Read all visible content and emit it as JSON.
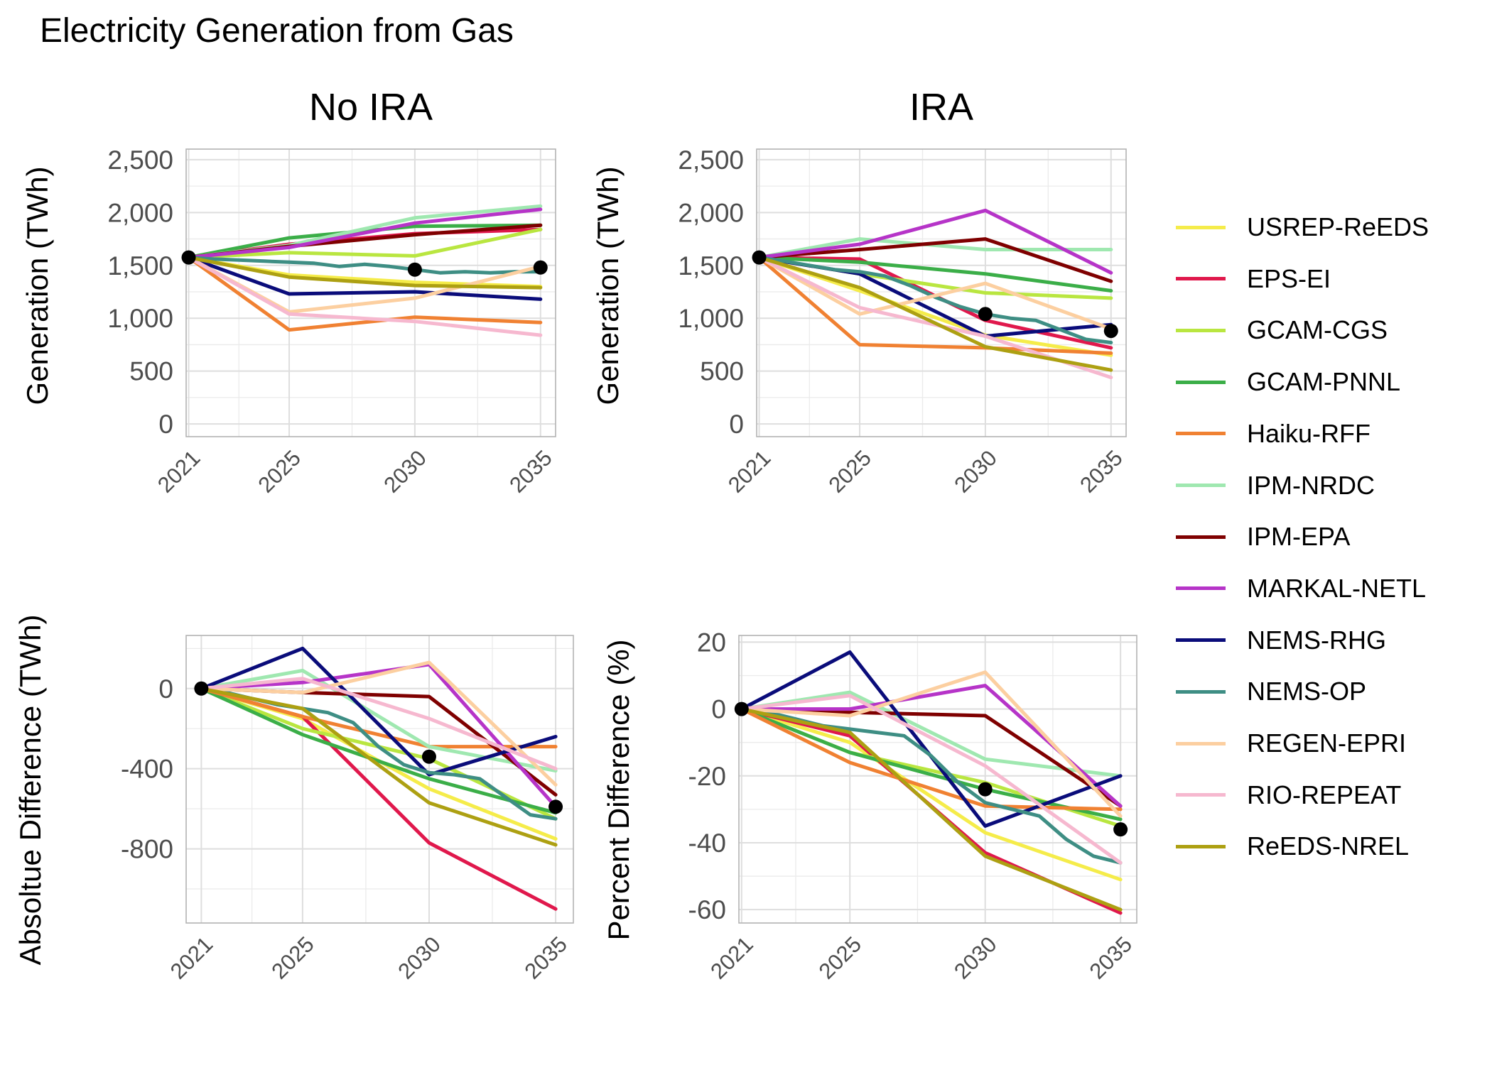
{
  "title": "Electricity Generation from Gas",
  "facets": [
    "No IRA",
    "IRA"
  ],
  "legend": [
    {
      "name": "USREP-ReEDS",
      "color": "#F5EC4A"
    },
    {
      "name": "EPS-EI",
      "color": "#E0184C"
    },
    {
      "name": "GCAM-CGS",
      "color": "#B9E640"
    },
    {
      "name": "GCAM-PNNL",
      "color": "#3BAE48"
    },
    {
      "name": "Haiku-RFF",
      "color": "#F08132"
    },
    {
      "name": "IPM-NRDC",
      "color": "#9FE8B0"
    },
    {
      "name": "IPM-EPA",
      "color": "#7F0000"
    },
    {
      "name": "MARKAL-NETL",
      "color": "#B634C8"
    },
    {
      "name": "NEMS-RHG",
      "color": "#0A0C7A"
    },
    {
      "name": "NEMS-OP",
      "color": "#3E8E84"
    },
    {
      "name": "REGEN-EPRI",
      "color": "#FCCFA0"
    },
    {
      "name": "RIO-REPEAT",
      "color": "#F6B8CF"
    },
    {
      "name": "ReEDS-NREL",
      "color": "#ADA012"
    }
  ],
  "chart_data": [
    {
      "type": "line",
      "id": "no-ira-generation",
      "facet": "No IRA",
      "ylabel": "Generation (TWh)",
      "x_ticks": [
        "2021",
        "2025",
        "2030",
        "2035"
      ],
      "y_ticks": [
        "0",
        "500",
        "1,000",
        "1,500",
        "2,000",
        "2,500"
      ],
      "xlim": [
        2020.9,
        2035.6
      ],
      "ylim": [
        -120,
        2600
      ],
      "tick_values": [
        0,
        500,
        1000,
        1500,
        2000,
        2500
      ],
      "series": [
        {
          "name": "USREP-ReEDS",
          "x": [
            2021,
            2025,
            2030,
            2035
          ],
          "y": [
            1575,
            1410,
            1340,
            1300
          ]
        },
        {
          "name": "EPS-EI",
          "x": [
            2021,
            2025,
            2030,
            2035
          ],
          "y": [
            1575,
            1700,
            1800,
            1840
          ]
        },
        {
          "name": "GCAM-CGS",
          "x": [
            2021,
            2025,
            2030,
            2035
          ],
          "y": [
            1575,
            1620,
            1590,
            1840
          ]
        },
        {
          "name": "GCAM-PNNL",
          "x": [
            2021,
            2025,
            2030,
            2035
          ],
          "y": [
            1575,
            1760,
            1870,
            1880
          ]
        },
        {
          "name": "Haiku-RFF",
          "x": [
            2021,
            2025,
            2030,
            2035
          ],
          "y": [
            1575,
            890,
            1010,
            960
          ]
        },
        {
          "name": "IPM-NRDC",
          "x": [
            2021,
            2025,
            2030,
            2035
          ],
          "y": [
            1575,
            1690,
            1950,
            2060
          ]
        },
        {
          "name": "IPM-EPA",
          "x": [
            2021,
            2025,
            2030,
            2035
          ],
          "y": [
            1575,
            1680,
            1790,
            1880
          ]
        },
        {
          "name": "MARKAL-NETL",
          "x": [
            2021,
            2025,
            2030,
            2035
          ],
          "y": [
            1575,
            1670,
            1900,
            2030
          ]
        },
        {
          "name": "NEMS-RHG",
          "x": [
            2021,
            2025,
            2030,
            2035
          ],
          "y": [
            1575,
            1230,
            1250,
            1180
          ]
        },
        {
          "name": "NEMS-OP",
          "x": [
            2021,
            2022,
            2023,
            2024,
            2025,
            2026,
            2027,
            2028,
            2029,
            2030,
            2031,
            2032,
            2033,
            2034,
            2035
          ],
          "y": [
            1575,
            1560,
            1550,
            1540,
            1530,
            1520,
            1490,
            1510,
            1490,
            1460,
            1430,
            1440,
            1430,
            1440,
            1440
          ]
        },
        {
          "name": "REGEN-EPRI",
          "x": [
            2021,
            2025,
            2030,
            2035
          ],
          "y": [
            1575,
            1060,
            1190,
            1490
          ]
        },
        {
          "name": "RIO-REPEAT",
          "x": [
            2021,
            2025,
            2030,
            2035
          ],
          "y": [
            1575,
            1040,
            970,
            840
          ]
        },
        {
          "name": "ReEDS-NREL",
          "x": [
            2021,
            2025,
            2030,
            2035
          ],
          "y": [
            1575,
            1390,
            1310,
            1290
          ]
        }
      ],
      "points": [
        {
          "x": 2021,
          "y": 1575
        },
        {
          "x": 2030,
          "y": 1460
        },
        {
          "x": 2035,
          "y": 1480
        }
      ]
    },
    {
      "type": "line",
      "id": "ira-generation",
      "facet": "IRA",
      "ylabel": "Generation (TWh)",
      "x_ticks": [
        "2021",
        "2025",
        "2030",
        "2035"
      ],
      "y_ticks": [
        "0",
        "500",
        "1,000",
        "1,500",
        "2,000",
        "2,500"
      ],
      "xlim": [
        2020.9,
        2035.6
      ],
      "ylim": [
        -120,
        2600
      ],
      "tick_values": [
        0,
        500,
        1000,
        1500,
        2000,
        2500
      ],
      "series": [
        {
          "name": "USREP-ReEDS",
          "x": [
            2021,
            2025,
            2030,
            2035
          ],
          "y": [
            1575,
            1260,
            840,
            650
          ]
        },
        {
          "name": "EPS-EI",
          "x": [
            2021,
            2025,
            2030,
            2035
          ],
          "y": [
            1575,
            1560,
            980,
            720
          ]
        },
        {
          "name": "GCAM-CGS",
          "x": [
            2021,
            2025,
            2030,
            2035
          ],
          "y": [
            1575,
            1420,
            1240,
            1190
          ]
        },
        {
          "name": "GCAM-PNNL",
          "x": [
            2021,
            2025,
            2030,
            2035
          ],
          "y": [
            1575,
            1530,
            1420,
            1260
          ]
        },
        {
          "name": "Haiku-RFF",
          "x": [
            2021,
            2025,
            2030,
            2035
          ],
          "y": [
            1575,
            750,
            720,
            670
          ]
        },
        {
          "name": "IPM-NRDC",
          "x": [
            2021,
            2025,
            2030,
            2035
          ],
          "y": [
            1575,
            1750,
            1650,
            1650
          ]
        },
        {
          "name": "IPM-EPA",
          "x": [
            2021,
            2025,
            2030,
            2035
          ],
          "y": [
            1575,
            1650,
            1750,
            1350
          ]
        },
        {
          "name": "MARKAL-NETL",
          "x": [
            2021,
            2025,
            2030,
            2035
          ],
          "y": [
            1575,
            1700,
            2020,
            1430
          ]
        },
        {
          "name": "NEMS-RHG",
          "x": [
            2021,
            2025,
            2030,
            2035
          ],
          "y": [
            1575,
            1420,
            830,
            940
          ]
        },
        {
          "name": "NEMS-OP",
          "x": [
            2021,
            2022,
            2023,
            2024,
            2025,
            2026,
            2027,
            2028,
            2029,
            2030,
            2031,
            2032,
            2033,
            2034,
            2035
          ],
          "y": [
            1575,
            1540,
            1500,
            1460,
            1440,
            1400,
            1310,
            1200,
            1110,
            1040,
            1000,
            980,
            890,
            800,
            770
          ]
        },
        {
          "name": "REGEN-EPRI",
          "x": [
            2021,
            2025,
            2030,
            2035
          ],
          "y": [
            1575,
            1040,
            1330,
            900
          ]
        },
        {
          "name": "RIO-REPEAT",
          "x": [
            2021,
            2025,
            2030,
            2035
          ],
          "y": [
            1575,
            1100,
            830,
            440
          ]
        },
        {
          "name": "ReEDS-NREL",
          "x": [
            2021,
            2025,
            2030,
            2035
          ],
          "y": [
            1575,
            1290,
            730,
            510
          ]
        }
      ],
      "points": [
        {
          "x": 2021,
          "y": 1575
        },
        {
          "x": 2030,
          "y": 1040
        },
        {
          "x": 2035,
          "y": 880
        }
      ]
    },
    {
      "type": "line",
      "id": "absolute-difference",
      "facet": "",
      "ylabel": "Absoltue Difference (TWh)",
      "x_ticks": [
        "2021",
        "2025",
        "2030",
        "2035"
      ],
      "y_ticks": [
        "-800",
        "-400",
        "0"
      ],
      "xlim": [
        2020.4,
        2035.7
      ],
      "ylim": [
        -1170,
        265
      ],
      "tick_values": [
        -800,
        -400,
        0
      ],
      "series": [
        {
          "name": "USREP-ReEDS",
          "x": [
            2021,
            2025,
            2030,
            2035
          ],
          "y": [
            0,
            -150,
            -500,
            -750
          ]
        },
        {
          "name": "EPS-EI",
          "x": [
            2021,
            2025,
            2030,
            2035
          ],
          "y": [
            0,
            -140,
            -770,
            -1100
          ]
        },
        {
          "name": "GCAM-CGS",
          "x": [
            2021,
            2025,
            2030,
            2035
          ],
          "y": [
            0,
            -200,
            -350,
            -650
          ]
        },
        {
          "name": "GCAM-PNNL",
          "x": [
            2021,
            2025,
            2030,
            2035
          ],
          "y": [
            0,
            -230,
            -450,
            -620
          ]
        },
        {
          "name": "Haiku-RFF",
          "x": [
            2021,
            2025,
            2030,
            2035
          ],
          "y": [
            0,
            -140,
            -290,
            -290
          ]
        },
        {
          "name": "IPM-NRDC",
          "x": [
            2021,
            2025,
            2030,
            2035
          ],
          "y": [
            0,
            90,
            -290,
            -410
          ]
        },
        {
          "name": "IPM-EPA",
          "x": [
            2021,
            2025,
            2030,
            2035
          ],
          "y": [
            0,
            -20,
            -40,
            -530
          ]
        },
        {
          "name": "MARKAL-NETL",
          "x": [
            2021,
            2025,
            2030,
            2035
          ],
          "y": [
            0,
            30,
            120,
            -590
          ]
        },
        {
          "name": "NEMS-RHG",
          "x": [
            2021,
            2025,
            2030,
            2035
          ],
          "y": [
            0,
            200,
            -430,
            -240
          ]
        },
        {
          "name": "NEMS-OP",
          "x": [
            2021,
            2022,
            2023,
            2024,
            2025,
            2026,
            2027,
            2028,
            2029,
            2030,
            2031,
            2032,
            2033,
            2034,
            2035
          ],
          "y": [
            0,
            -20,
            -50,
            -80,
            -100,
            -120,
            -170,
            -290,
            -380,
            -420,
            -430,
            -450,
            -540,
            -630,
            -650
          ]
        },
        {
          "name": "REGEN-EPRI",
          "x": [
            2021,
            2025,
            2030,
            2035
          ],
          "y": [
            0,
            -20,
            130,
            -480
          ]
        },
        {
          "name": "RIO-REPEAT",
          "x": [
            2021,
            2025,
            2030,
            2035
          ],
          "y": [
            0,
            50,
            -150,
            -400
          ]
        },
        {
          "name": "ReEDS-NREL",
          "x": [
            2021,
            2025,
            2030,
            2035
          ],
          "y": [
            0,
            -100,
            -570,
            -780
          ]
        }
      ],
      "points": [
        {
          "x": 2021,
          "y": 0
        },
        {
          "x": 2030,
          "y": -340
        },
        {
          "x": 2035,
          "y": -590
        }
      ]
    },
    {
      "type": "line",
      "id": "percent-difference",
      "facet": "",
      "ylabel": "Percent Difference (%)",
      "x_ticks": [
        "2021",
        "2025",
        "2030",
        "2035"
      ],
      "y_ticks": [
        "-60",
        "-40",
        "-20",
        "0",
        "20"
      ],
      "xlim": [
        2020.9,
        2035.6
      ],
      "ylim": [
        -64,
        22
      ],
      "tick_values": [
        -60,
        -40,
        -20,
        0,
        20
      ],
      "series": [
        {
          "name": "USREP-ReEDS",
          "x": [
            2021,
            2025,
            2030,
            2035
          ],
          "y": [
            0,
            -10,
            -37,
            -51
          ]
        },
        {
          "name": "EPS-EI",
          "x": [
            2021,
            2025,
            2030,
            2035
          ],
          "y": [
            0,
            -8,
            -43,
            -61
          ]
        },
        {
          "name": "GCAM-CGS",
          "x": [
            2021,
            2025,
            2030,
            2035
          ],
          "y": [
            0,
            -13,
            -22,
            -35
          ]
        },
        {
          "name": "GCAM-PNNL",
          "x": [
            2021,
            2025,
            2030,
            2035
          ],
          "y": [
            0,
            -13,
            -24,
            -33
          ]
        },
        {
          "name": "Haiku-RFF",
          "x": [
            2021,
            2025,
            2030,
            2035
          ],
          "y": [
            0,
            -16,
            -29,
            -30
          ]
        },
        {
          "name": "IPM-NRDC",
          "x": [
            2021,
            2025,
            2030,
            2035
          ],
          "y": [
            0,
            5,
            -15,
            -20
          ]
        },
        {
          "name": "IPM-EPA",
          "x": [
            2021,
            2025,
            2030,
            2035
          ],
          "y": [
            0,
            -1,
            -2,
            -29
          ]
        },
        {
          "name": "MARKAL-NETL",
          "x": [
            2021,
            2025,
            2030,
            2035
          ],
          "y": [
            0,
            0,
            7,
            -29
          ]
        },
        {
          "name": "NEMS-RHG",
          "x": [
            2021,
            2025,
            2030,
            2035
          ],
          "y": [
            0,
            17,
            -35,
            -20
          ]
        },
        {
          "name": "NEMS-OP",
          "x": [
            2021,
            2022,
            2023,
            2024,
            2025,
            2026,
            2027,
            2028,
            2029,
            2030,
            2031,
            2032,
            2033,
            2034,
            2035
          ],
          "y": [
            0,
            -1,
            -3,
            -5,
            -6,
            -7,
            -8,
            -14,
            -22,
            -28,
            -30,
            -32,
            -39,
            -44,
            -46
          ]
        },
        {
          "name": "REGEN-EPRI",
          "x": [
            2021,
            2025,
            2030,
            2035
          ],
          "y": [
            0,
            -2,
            11,
            -32
          ]
        },
        {
          "name": "RIO-REPEAT",
          "x": [
            2021,
            2025,
            2030,
            2035
          ],
          "y": [
            0,
            4,
            -17,
            -46
          ]
        },
        {
          "name": "ReEDS-NREL",
          "x": [
            2021,
            2025,
            2030,
            2035
          ],
          "y": [
            0,
            -7,
            -44,
            -60
          ]
        }
      ],
      "points": [
        {
          "x": 2021,
          "y": 0
        },
        {
          "x": 2030,
          "y": -24
        },
        {
          "x": 2035,
          "y": -36
        }
      ]
    }
  ]
}
